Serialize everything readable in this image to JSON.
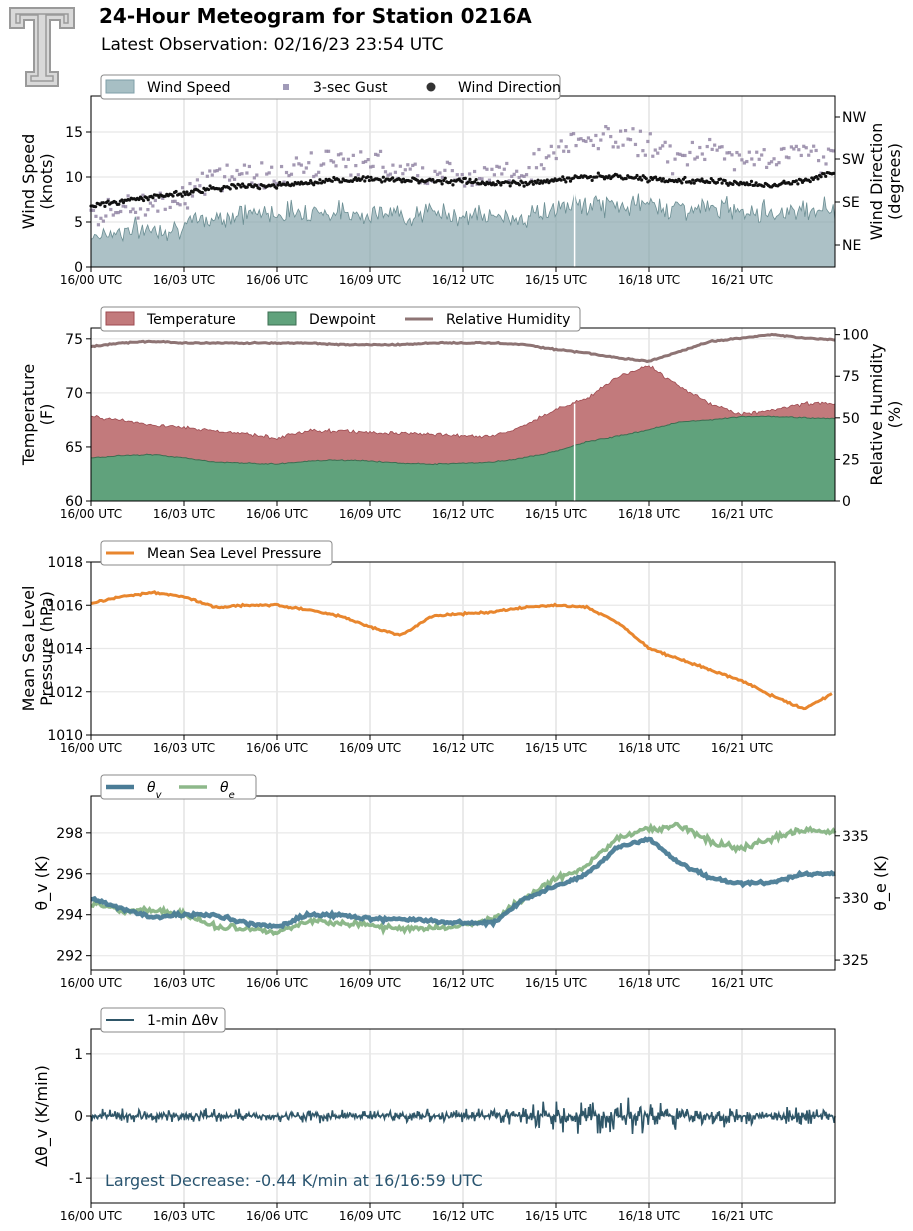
{
  "header": {
    "title": "24-Hour Meteogram for Station 0216A",
    "subtitle": "Latest Observation: 02/16/23 23:54 UTC",
    "logo_text": "T"
  },
  "colors": {
    "wind_speed": "#7f9fa8",
    "gust": "#8d7fa0",
    "direction": "#111111",
    "temperature": "#b5585e",
    "dewpoint": "#3e8a5c",
    "rh": "#8e7474",
    "pressure": "#e8862e",
    "theta_v": "#4a7c96",
    "theta_e": "#8db88a",
    "delta_theta": "#2f5668",
    "annotation": "#2a5570"
  },
  "chart_data": [
    {
      "type": "area",
      "panel": "wind",
      "ylabel": "Wind Speed\n(knots)",
      "ylabel2": "Wind Direction\n(degrees)",
      "ylim": [
        0,
        19
      ],
      "yticks": [
        0,
        5,
        10,
        15
      ],
      "y2ticks": [
        "NE",
        "SE",
        "SW",
        "NW"
      ],
      "xticks": [
        "16/00 UTC",
        "16/03 UTC",
        "16/06 UTC",
        "16/09 UTC",
        "16/12 UTC",
        "16/15 UTC",
        "16/18 UTC",
        "16/21 UTC"
      ],
      "legend": [
        "Wind Speed",
        "3-sec Gust",
        "Wind Direction"
      ],
      "legend_position": "top-left",
      "grid": true,
      "series": [
        {
          "name": "Wind Speed",
          "x": [
            0,
            1,
            2,
            3,
            4,
            5,
            6,
            7,
            8,
            9,
            10,
            11,
            12,
            13,
            14,
            15,
            16,
            17,
            18,
            19,
            20,
            21,
            22,
            23,
            24
          ],
          "values": [
            3.5,
            4.0,
            4.2,
            4.5,
            5.5,
            6.0,
            6.0,
            6.3,
            6.0,
            6.0,
            5.8,
            6.0,
            5.8,
            5.5,
            5.5,
            6.5,
            7.0,
            6.8,
            7.0,
            6.5,
            6.5,
            6.5,
            6.0,
            6.5,
            6.5
          ]
        },
        {
          "name": "3-sec Gust",
          "x": [
            0,
            1,
            2,
            3,
            4,
            5,
            6,
            7,
            8,
            9,
            10,
            11,
            12,
            13,
            14,
            15,
            16,
            17,
            18,
            19,
            20,
            21,
            22,
            23,
            24
          ],
          "values": [
            5.5,
            6.5,
            7.0,
            8.0,
            10.0,
            10.5,
            10.0,
            11.0,
            12.0,
            11.5,
            11.0,
            10.5,
            10.0,
            11.0,
            10.5,
            13.0,
            14.0,
            14.5,
            13.5,
            12.0,
            13.0,
            12.0,
            12.0,
            13.0,
            12.0
          ]
        },
        {
          "name": "Wind Direction",
          "x": [
            0,
            1,
            2,
            3,
            4,
            5,
            6,
            7,
            8,
            9,
            10,
            11,
            12,
            13,
            14,
            15,
            16,
            17,
            18,
            19,
            20,
            21,
            22,
            23,
            24
          ],
          "values": [
            6.8,
            7.3,
            7.8,
            8.2,
            8.8,
            9.0,
            9.1,
            9.3,
            9.6,
            9.8,
            9.7,
            9.6,
            9.5,
            9.3,
            9.3,
            9.7,
            10.0,
            10.0,
            9.8,
            9.6,
            9.5,
            9.3,
            9.0,
            9.6,
            10.5
          ]
        }
      ]
    },
    {
      "type": "area",
      "panel": "temperature",
      "ylabel": "Temperature\n(F)",
      "ylabel2": "Relative Humidity\n(%)",
      "ylim": [
        60,
        76
      ],
      "yticks": [
        60,
        65,
        70,
        75
      ],
      "y2lim": [
        0,
        104
      ],
      "y2ticks": [
        0,
        25,
        50,
        75,
        100
      ],
      "xticks": [
        "16/00 UTC",
        "16/03 UTC",
        "16/06 UTC",
        "16/09 UTC",
        "16/12 UTC",
        "16/15 UTC",
        "16/18 UTC",
        "16/21 UTC"
      ],
      "legend": [
        "Temperature",
        "Dewpoint",
        "Relative Humidity"
      ],
      "legend_position": "top-left",
      "grid": true,
      "series": [
        {
          "name": "Temperature",
          "x": [
            0,
            1,
            2,
            3,
            4,
            5,
            6,
            7,
            8,
            9,
            10,
            11,
            12,
            13,
            14,
            15,
            16,
            17,
            18,
            19,
            20,
            21,
            22,
            23,
            24
          ],
          "values": [
            67.8,
            67.5,
            67.0,
            66.8,
            66.5,
            66.2,
            65.8,
            66.5,
            66.5,
            66.3,
            66.3,
            66.2,
            66.0,
            66.0,
            67.0,
            68.5,
            69.5,
            71.5,
            72.5,
            70.5,
            69.0,
            68.0,
            68.5,
            69.0,
            69.0
          ]
        },
        {
          "name": "Dewpoint",
          "x": [
            0,
            1,
            2,
            3,
            4,
            5,
            6,
            7,
            8,
            9,
            10,
            11,
            12,
            13,
            14,
            15,
            16,
            17,
            18,
            19,
            20,
            21,
            22,
            23,
            24
          ],
          "values": [
            64.0,
            64.2,
            64.3,
            64.0,
            63.6,
            63.5,
            63.4,
            63.7,
            63.8,
            63.7,
            63.5,
            63.4,
            63.5,
            63.6,
            64.0,
            64.6,
            65.5,
            66.0,
            66.6,
            67.3,
            67.5,
            67.8,
            67.8,
            67.7,
            67.6
          ]
        },
        {
          "name": "Relative Humidity",
          "x": [
            0,
            1,
            2,
            3,
            4,
            5,
            6,
            7,
            8,
            9,
            10,
            11,
            12,
            13,
            14,
            15,
            16,
            17,
            18,
            19,
            20,
            21,
            22,
            23,
            24
          ],
          "values": [
            93,
            95,
            96,
            95,
            95,
            95,
            95,
            95,
            94,
            94,
            94,
            95,
            95,
            95,
            94,
            91,
            89,
            86,
            84,
            90,
            96,
            98,
            100,
            98,
            97
          ]
        }
      ]
    },
    {
      "type": "line",
      "panel": "pressure",
      "ylabel": "Mean Sea Level\nPressure (hPa)",
      "ylim": [
        1010,
        1018
      ],
      "yticks": [
        1010,
        1012,
        1014,
        1016,
        1018
      ],
      "xticks": [
        "16/00 UTC",
        "16/03 UTC",
        "16/06 UTC",
        "16/09 UTC",
        "16/12 UTC",
        "16/15 UTC",
        "16/18 UTC",
        "16/21 UTC"
      ],
      "legend": [
        "Mean Sea Level Pressure"
      ],
      "legend_position": "top-left",
      "grid": true,
      "series": [
        {
          "name": "Mean Sea Level Pressure",
          "x": [
            0,
            1,
            2,
            3,
            4,
            5,
            6,
            7,
            8,
            9,
            10,
            11,
            12,
            13,
            14,
            15,
            16,
            17,
            18,
            19,
            20,
            21,
            22,
            23,
            23.9
          ],
          "values": [
            1016.1,
            1016.4,
            1016.6,
            1016.4,
            1015.9,
            1016.0,
            1016.0,
            1015.8,
            1015.5,
            1015.0,
            1014.6,
            1015.5,
            1015.6,
            1015.7,
            1015.9,
            1016.0,
            1015.9,
            1015.2,
            1014.0,
            1013.5,
            1013.0,
            1012.5,
            1011.8,
            1011.2,
            1011.9
          ]
        }
      ]
    },
    {
      "type": "line",
      "panel": "theta",
      "ylabel": "θ_v (K)",
      "ylabel2": "θ_e (K)",
      "ylim": [
        291.3,
        299.8
      ],
      "yticks": [
        292,
        294,
        296,
        298
      ],
      "y2lim": [
        324.2,
        338.2
      ],
      "y2ticks": [
        325,
        330,
        335
      ],
      "xticks": [
        "16/00 UTC",
        "16/03 UTC",
        "16/06 UTC",
        "16/09 UTC",
        "16/12 UTC",
        "16/15 UTC",
        "16/18 UTC",
        "16/21 UTC"
      ],
      "legend": [
        "θv",
        "θe"
      ],
      "legend_position": "top-left",
      "grid": true,
      "series": [
        {
          "name": "θv",
          "x": [
            0,
            1,
            2,
            3,
            4,
            5,
            6,
            7,
            8,
            9,
            10,
            11,
            12,
            13,
            14,
            15,
            16,
            17,
            18,
            19,
            20,
            21,
            22,
            23,
            24
          ],
          "values": [
            294.8,
            294.3,
            293.9,
            294.0,
            294.0,
            293.6,
            293.4,
            294.0,
            294.0,
            293.8,
            293.8,
            293.7,
            293.6,
            293.6,
            294.8,
            295.4,
            296.0,
            297.3,
            297.7,
            296.5,
            295.8,
            295.5,
            295.6,
            296.0,
            296.0
          ]
        },
        {
          "name": "θe",
          "x": [
            0,
            1,
            2,
            3,
            4,
            5,
            6,
            7,
            8,
            9,
            10,
            11,
            12,
            13,
            14,
            15,
            16,
            17,
            18,
            19,
            20,
            21,
            22,
            23,
            24
          ],
          "values": [
            329.6,
            329.0,
            329.0,
            328.7,
            327.7,
            327.5,
            327.2,
            328.2,
            328.0,
            327.8,
            327.5,
            327.6,
            327.8,
            328.3,
            330.0,
            331.5,
            332.6,
            334.8,
            335.5,
            335.8,
            334.5,
            334.0,
            334.8,
            335.5,
            335.3
          ]
        }
      ]
    },
    {
      "type": "line",
      "panel": "delta",
      "ylabel": "Δθ_v (K/min)",
      "ylim": [
        -1.4,
        1.4
      ],
      "yticks": [
        -1,
        0,
        1
      ],
      "xticks": [
        "16/00 UTC",
        "16/03 UTC",
        "16/06 UTC",
        "16/09 UTC",
        "16/12 UTC",
        "16/15 UTC",
        "16/18 UTC",
        "16/21 UTC"
      ],
      "legend": [
        "1-min Δθv"
      ],
      "legend_position": "top-left",
      "grid": true,
      "annotation": "Largest Decrease: -0.44 K/min at 16/16:59 UTC",
      "series": [
        {
          "name": "1-min Δθv",
          "x": [
            0,
            1,
            2,
            3,
            4,
            5,
            6,
            7,
            8,
            9,
            10,
            11,
            12,
            13,
            14,
            15,
            16,
            17,
            18,
            19,
            20,
            21,
            22,
            23,
            24
          ],
          "values": [
            0.1,
            0.12,
            0.1,
            0.12,
            0.12,
            0.1,
            0.1,
            0.12,
            0.12,
            0.12,
            0.12,
            0.15,
            0.15,
            0.12,
            0.18,
            0.28,
            0.3,
            0.3,
            0.25,
            0.22,
            0.18,
            0.16,
            0.16,
            0.18,
            0.16
          ]
        }
      ]
    }
  ]
}
